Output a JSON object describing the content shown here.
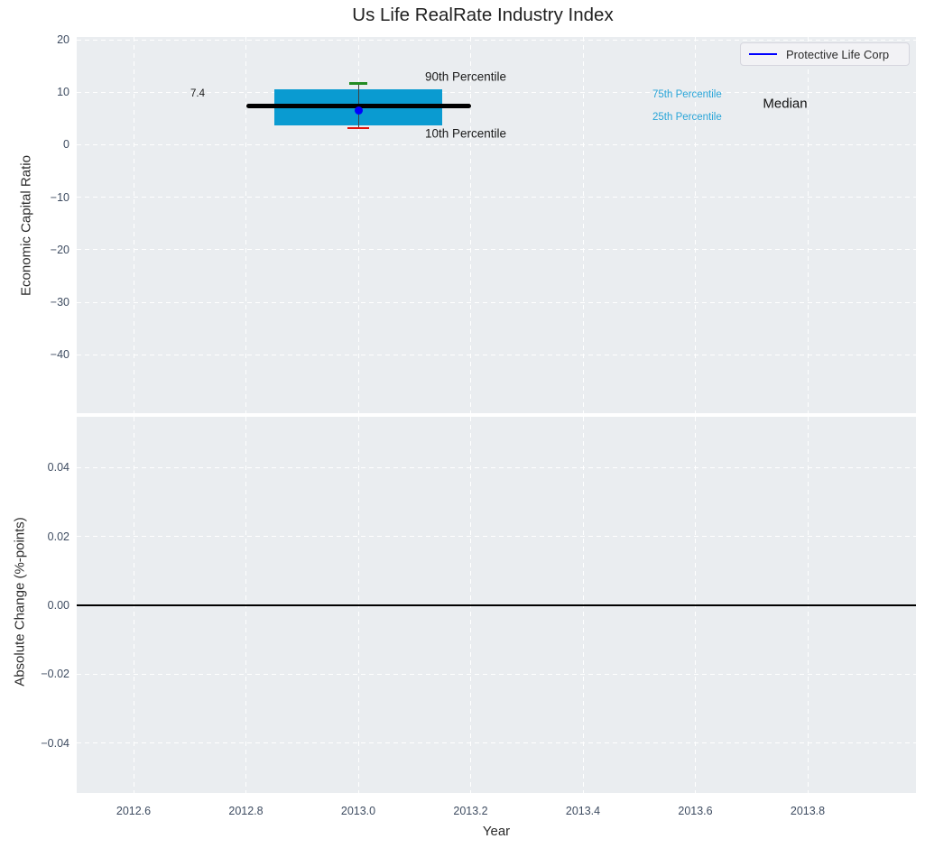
{
  "title": "Us Life RealRate Industry Index",
  "axes": {
    "top": {
      "ylabel": "Economic Capital Ratio",
      "yticklabels": [
        "20",
        "10",
        "0",
        "−10",
        "−20",
        "−30",
        "−40"
      ]
    },
    "bottom": {
      "ylabel": "Absolute Change (%-points)",
      "yticklabels": [
        "0.04",
        "0.02",
        "0.00",
        "−0.02",
        "−0.04"
      ]
    },
    "x": {
      "label": "Year",
      "ticklabels": [
        "2012.6",
        "2012.8",
        "2013.0",
        "2013.2",
        "2013.4",
        "2013.6",
        "2013.8"
      ]
    }
  },
  "legend": {
    "label": "Protective Life Corp"
  },
  "annotations": {
    "median_value": "7.4",
    "p90": "90th Percentile",
    "p10": "10th Percentile",
    "p75": "75th Percentile",
    "p25": "25th Percentile",
    "median": "Median"
  },
  "colors": {
    "plot_bg": "#eaedf0",
    "grid": "#ffffff",
    "box": "#0a9bd1",
    "company_point": "#0000ff",
    "p90_cap": "#228b22",
    "p10_cap": "#e3120b",
    "whisker": "#404040",
    "median_line": "#000000",
    "zero_line": "#000000",
    "tick_text": "#3e4c61",
    "percentile_text": "#29a5d8"
  },
  "chart_data": {
    "type": "boxplot",
    "title": "Us Life RealRate Industry Index",
    "xlabel": "Year",
    "grid": "on, white dashed",
    "legend_position": "upper right",
    "panels": [
      {
        "name": "industry-index",
        "ylabel": "Economic Capital Ratio",
        "ylim": [
          -50,
          20.5
        ],
        "yticks": [
          20,
          10,
          0,
          -10,
          -20,
          -30,
          -40
        ],
        "xlim": [
          2012.5,
          2013.99
        ],
        "xticks": [
          2012.6,
          2012.8,
          2013.0,
          2013.2,
          2013.4,
          2013.6,
          2013.8
        ],
        "box": {
          "x": 2013.0,
          "median": 7.4,
          "p75": 10.5,
          "p25": 3.7,
          "p90": 11.7,
          "p10": 3.2,
          "box_x_span": [
            2012.85,
            2013.15
          ],
          "median_x_span": [
            2012.8,
            2013.2
          ]
        },
        "company_point": {
          "name": "Protective Life Corp",
          "x": 2013.0,
          "y": 6.5
        }
      },
      {
        "name": "absolute-change",
        "ylabel": "Absolute Change (%-points)",
        "ylim": [
          -0.055,
          0.055
        ],
        "yticks": [
          0.04,
          0.02,
          0.0,
          -0.02,
          -0.04
        ],
        "xticks": [
          2012.6,
          2012.8,
          2013.0,
          2013.2,
          2013.4,
          2013.6,
          2013.8
        ],
        "zero_line": 0.0,
        "series": []
      }
    ]
  }
}
